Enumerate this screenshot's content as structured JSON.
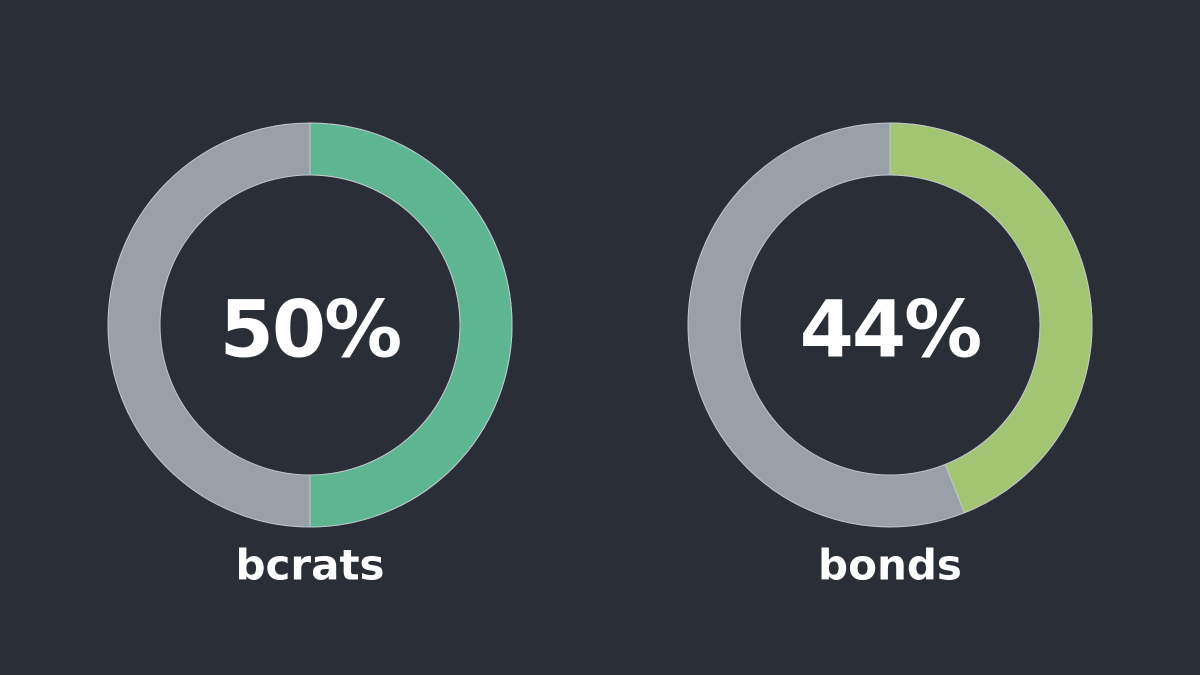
{
  "chart_data": [
    {
      "type": "donut",
      "categories": [
        "bcrats"
      ],
      "values": [
        50
      ],
      "value_labels": [
        "50%"
      ],
      "color": "#5db592",
      "track_color": "#9aa0a8"
    },
    {
      "type": "donut",
      "categories": [
        "bonds"
      ],
      "values": [
        44
      ],
      "value_labels": [
        "44%"
      ],
      "color": "#a3c472",
      "track_color": "#9aa0a8"
    }
  ]
}
